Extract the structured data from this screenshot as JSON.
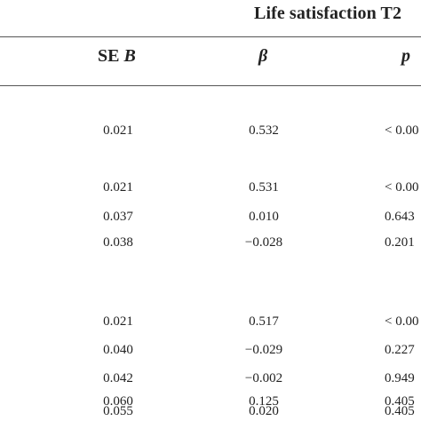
{
  "table": {
    "group_header": "Life satisfaction T2",
    "columns": [
      "SE ",
      "B",
      "β",
      "p"
    ],
    "rows": [
      {
        "se": "0.021",
        "beta": "0.532",
        "p": "< 0.00"
      },
      {
        "se": "0.021",
        "beta": "0.531",
        "p": "< 0.00"
      },
      {
        "se": "0.037",
        "beta": "0.010",
        "p": "0.643"
      },
      {
        "se": "0.038",
        "beta": "−0.028",
        "p": "0.201"
      },
      {
        "se": "0.021",
        "beta": "0.517",
        "p": "< 0.00"
      },
      {
        "se": "0.040",
        "beta": "−0.029",
        "p": "0.227"
      },
      {
        "se": "0.042",
        "beta": "−0.002",
        "p": "0.949"
      },
      {
        "se": "0.060",
        "beta": "0.125",
        "p": "0.405"
      },
      {
        "se": "0.055",
        "beta": "0.020",
        "p": "0.405"
      }
    ]
  }
}
